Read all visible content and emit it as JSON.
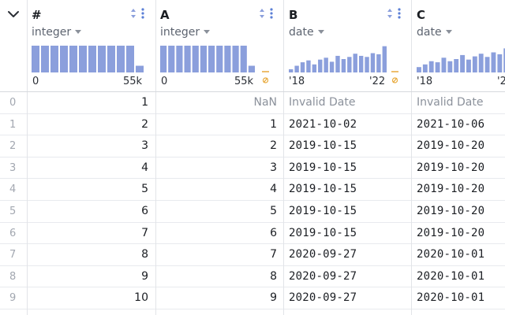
{
  "columns": [
    {
      "key": "hash",
      "title": "#",
      "type": "integer",
      "axis_min": "0",
      "axis_max": "55k",
      "histogram": [
        1,
        1,
        1,
        1,
        1,
        1,
        1,
        1,
        1,
        1,
        1,
        0.25
      ]
    },
    {
      "key": "A",
      "title": "A",
      "type": "integer",
      "axis_min": "0",
      "axis_max": "55k",
      "histogram": [
        1,
        1,
        1,
        1,
        1,
        1,
        1,
        1,
        1,
        1,
        1,
        0.25
      ],
      "null_marker": "∅"
    },
    {
      "key": "B",
      "title": "B",
      "type": "date",
      "axis_min": "'18",
      "axis_max": "'22",
      "histogram": [
        0.12,
        0.25,
        0.38,
        0.45,
        0.3,
        0.48,
        0.55,
        0.4,
        0.62,
        0.5,
        0.58,
        0.7,
        0.62,
        0.58,
        0.72,
        0.68,
        0.98
      ],
      "null_marker": "∅"
    },
    {
      "key": "C",
      "title": "C",
      "type": "date",
      "axis_min": "'18",
      "axis_max": "'2",
      "histogram": [
        0.2,
        0.3,
        0.42,
        0.38,
        0.55,
        0.42,
        0.5,
        0.65,
        0.48,
        0.6,
        0.7,
        0.58,
        0.75,
        0.68,
        0.9,
        1.0
      ]
    }
  ],
  "rows": [
    {
      "index": "0",
      "hash": "1",
      "A": "NaN",
      "B": "Invalid Date",
      "C": "Invalid Date"
    },
    {
      "index": "1",
      "hash": "2",
      "A": "1",
      "B": "2021-10-02",
      "C": "2021-10-06"
    },
    {
      "index": "2",
      "hash": "3",
      "A": "2",
      "B": "2019-10-15",
      "C": "2019-10-20"
    },
    {
      "index": "3",
      "hash": "4",
      "A": "3",
      "B": "2019-10-15",
      "C": "2019-10-20"
    },
    {
      "index": "4",
      "hash": "5",
      "A": "4",
      "B": "2019-10-15",
      "C": "2019-10-20"
    },
    {
      "index": "5",
      "hash": "6",
      "A": "5",
      "B": "2019-10-15",
      "C": "2019-10-20"
    },
    {
      "index": "6",
      "hash": "7",
      "A": "6",
      "B": "2019-10-15",
      "C": "2019-10-20"
    },
    {
      "index": "7",
      "hash": "8",
      "A": "7",
      "B": "2020-09-27",
      "C": "2020-10-01"
    },
    {
      "index": "8",
      "hash": "9",
      "A": "8",
      "B": "2020-09-27",
      "C": "2020-10-01"
    },
    {
      "index": "9",
      "hash": "10",
      "A": "9",
      "B": "2020-09-27",
      "C": "2020-10-01"
    }
  ],
  "colors": {
    "histogram_bar": "#8b9fdc",
    "accent": "#5b7fd6",
    "null_marker": "#e8a93a"
  },
  "icons": {
    "collapse": "chevron-down-icon",
    "sort": "sort-icon",
    "menu": "more-vertical-icon",
    "null": "null-values-icon"
  }
}
